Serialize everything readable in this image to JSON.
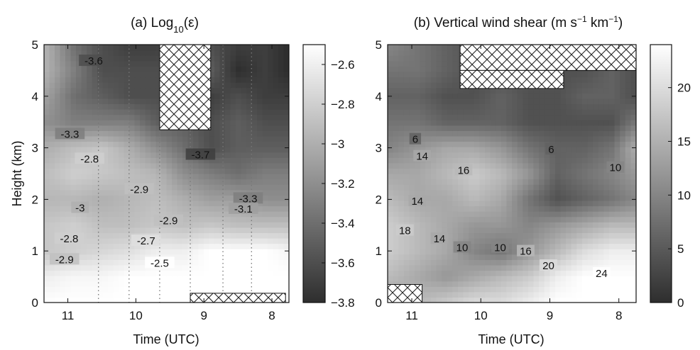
{
  "chart_data": [
    {
      "type": "heatmap",
      "title_prefix": "(a) Log",
      "title_sub": "10",
      "title_suffix": "(ε)",
      "xlabel": "Time (UTC)",
      "ylabel": "Height (km)",
      "x_reversed": true,
      "xlim": [
        11.35,
        7.75
      ],
      "ylim": [
        0,
        5
      ],
      "xticks": [
        {
          "v": 11,
          "t": "11"
        },
        {
          "v": 10,
          "t": "10"
        },
        {
          "v": 9,
          "t": "9"
        },
        {
          "v": 8,
          "t": "8"
        }
      ],
      "yticks": [
        {
          "v": 0,
          "t": "0"
        },
        {
          "v": 1,
          "t": "1"
        },
        {
          "v": 2,
          "t": "2"
        },
        {
          "v": 3,
          "t": "3"
        },
        {
          "v": 4,
          "t": "4"
        },
        {
          "v": 5,
          "t": "5"
        }
      ],
      "colorbar": {
        "range": [
          -3.8,
          -2.5
        ],
        "ticks": [
          {
            "v": -2.6,
            "t": "−2.6"
          },
          {
            "v": -2.8,
            "t": "−2.8"
          },
          {
            "v": -3.0,
            "t": "−3"
          },
          {
            "v": -3.2,
            "t": "−3.2"
          },
          {
            "v": -3.4,
            "t": "−3.4"
          },
          {
            "v": -3.6,
            "t": "−3.6"
          },
          {
            "v": -3.8,
            "t": "−3.8"
          }
        ],
        "dark_color": "#2e2e2e",
        "light_color": "#ffffff"
      },
      "heights": [
        0.0,
        0.5,
        1.0,
        1.5,
        2.0,
        2.5,
        3.0,
        3.5,
        4.0,
        4.5,
        5.0
      ],
      "times": [
        11.3,
        10.9,
        10.5,
        10.1,
        9.7,
        9.3,
        8.9,
        8.5,
        8.1,
        7.8
      ],
      "values": [
        [
          -2.5,
          -2.5,
          -2.5,
          -2.5,
          -2.5,
          -2.5,
          -2.5,
          -2.5,
          -2.5,
          -2.5
        ],
        [
          -2.6,
          -2.55,
          -2.55,
          -2.5,
          -2.5,
          -2.5,
          -2.5,
          -2.5,
          -2.5,
          -2.5
        ],
        [
          -2.85,
          -2.8,
          -2.75,
          -2.7,
          -2.6,
          -2.6,
          -2.5,
          -2.5,
          -2.5,
          -2.55
        ],
        [
          -2.85,
          -2.8,
          -2.9,
          -2.9,
          -2.85,
          -2.9,
          -2.85,
          -2.9,
          -2.9,
          -2.9
        ],
        [
          -2.95,
          -2.95,
          -3.0,
          -2.95,
          -2.9,
          -3.0,
          -3.1,
          -3.1,
          -3.2,
          -3.2
        ],
        [
          -2.9,
          -2.8,
          -2.85,
          -2.9,
          -2.95,
          -3.2,
          -3.3,
          -3.4,
          -3.3,
          -3.3
        ],
        [
          -3.0,
          -2.9,
          -2.85,
          -3.0,
          -3.2,
          -3.4,
          -3.6,
          -3.5,
          -3.5,
          -3.5
        ],
        [
          -3.2,
          -3.3,
          -3.3,
          -3.3,
          -3.5,
          -3.5,
          -3.6,
          -3.5,
          -3.6,
          -3.6
        ],
        [
          -3.1,
          -3.4,
          -3.5,
          -3.6,
          -3.6,
          -3.6,
          -3.7,
          -3.6,
          -3.7,
          -3.7
        ],
        [
          -3.0,
          -3.3,
          -3.6,
          -3.6,
          -3.6,
          -3.6,
          -3.5,
          -3.8,
          -3.7,
          -3.8
        ],
        [
          -3.0,
          -3.4,
          -3.6,
          -3.7,
          -3.7,
          -3.6,
          -3.6,
          -3.7,
          -3.7,
          -3.8
        ]
      ],
      "contour_labels": [
        {
          "x": 10.62,
          "y": 4.67,
          "t": "-3.6"
        },
        {
          "x": 10.97,
          "y": 3.25,
          "t": "-3.3"
        },
        {
          "x": 10.68,
          "y": 2.77,
          "t": "-2.8"
        },
        {
          "x": 9.95,
          "y": 2.18,
          "t": "-2.9"
        },
        {
          "x": 10.82,
          "y": 1.82,
          "t": "-3"
        },
        {
          "x": 9.52,
          "y": 1.57,
          "t": "-2.9"
        },
        {
          "x": 9.85,
          "y": 1.18,
          "t": "-2.7"
        },
        {
          "x": 10.98,
          "y": 1.22,
          "t": "-2.8"
        },
        {
          "x": 11.05,
          "y": 0.82,
          "t": "-2.9"
        },
        {
          "x": 9.65,
          "y": 0.75,
          "t": "-2.5"
        },
        {
          "x": 9.05,
          "y": 2.85,
          "t": "-3.7"
        },
        {
          "x": 8.35,
          "y": 2.0,
          "t": "-3.3"
        },
        {
          "x": 8.42,
          "y": 1.8,
          "t": "-3.1"
        }
      ],
      "hatch": [
        {
          "x0": 9.65,
          "x1": 8.9,
          "y0": 3.35,
          "y1": 5.0
        },
        {
          "x0": 9.2,
          "x1": 7.8,
          "y0": 0.0,
          "y1": 0.18
        }
      ],
      "dotted_x": [
        10.55,
        10.1,
        9.65,
        9.2,
        8.72,
        8.3
      ]
    },
    {
      "type": "heatmap",
      "title_prefix": "(b) Vertical wind shear (m s",
      "title_sup1": "−1",
      "title_mid": " km",
      "title_sup2": "−1",
      "title_suffix": ")",
      "xlabel": "Time (UTC)",
      "ylabel": "",
      "x_reversed": true,
      "xlim": [
        11.35,
        7.75
      ],
      "ylim": [
        0,
        5
      ],
      "xticks": [
        {
          "v": 11,
          "t": "11"
        },
        {
          "v": 10,
          "t": "10"
        },
        {
          "v": 9,
          "t": "9"
        },
        {
          "v": 8,
          "t": "8"
        }
      ],
      "yticks": [
        {
          "v": 0,
          "t": "0"
        },
        {
          "v": 1,
          "t": "1"
        },
        {
          "v": 2,
          "t": "2"
        },
        {
          "v": 3,
          "t": "3"
        },
        {
          "v": 4,
          "t": "4"
        },
        {
          "v": 5,
          "t": "5"
        }
      ],
      "colorbar": {
        "range": [
          0,
          24
        ],
        "ticks": [
          {
            "v": 0,
            "t": "0"
          },
          {
            "v": 5,
            "t": "5"
          },
          {
            "v": 10,
            "t": "10"
          },
          {
            "v": 15,
            "t": "15"
          },
          {
            "v": 20,
            "t": "20"
          }
        ],
        "dark_color": "#2e2e2e",
        "light_color": "#ffffff"
      },
      "heights": [
        0.0,
        0.5,
        1.0,
        1.5,
        2.0,
        2.5,
        3.0,
        3.5,
        4.0,
        4.5,
        5.0
      ],
      "times": [
        11.3,
        10.9,
        10.5,
        10.1,
        9.7,
        9.3,
        8.9,
        8.5,
        8.1,
        7.8
      ],
      "values": [
        [
          14,
          16,
          18,
          20,
          20,
          22,
          24,
          24,
          24,
          24
        ],
        [
          16,
          14,
          12,
          14,
          16,
          18,
          22,
          24,
          24,
          24
        ],
        [
          18,
          16,
          14,
          10,
          8,
          12,
          16,
          20,
          22,
          22
        ],
        [
          18,
          16,
          14,
          12,
          12,
          10,
          12,
          14,
          16,
          16
        ],
        [
          16,
          14,
          14,
          16,
          14,
          8,
          4,
          6,
          8,
          10
        ],
        [
          14,
          14,
          16,
          18,
          16,
          12,
          6,
          8,
          10,
          12
        ],
        [
          10,
          12,
          14,
          14,
          12,
          8,
          6,
          6,
          8,
          14
        ],
        [
          8,
          8,
          6,
          6,
          6,
          4,
          4,
          4,
          4,
          8
        ],
        [
          6,
          6,
          4,
          4,
          6,
          4,
          4,
          6,
          6,
          4
        ],
        [
          8,
          8,
          6,
          4,
          4,
          4,
          4,
          4,
          6,
          4
        ],
        [
          10,
          8,
          6,
          4,
          4,
          4,
          4,
          4,
          4,
          4
        ]
      ],
      "contour_labels": [
        {
          "x": 10.95,
          "y": 3.15,
          "t": "6"
        },
        {
          "x": 10.85,
          "y": 2.82,
          "t": "14"
        },
        {
          "x": 10.25,
          "y": 2.55,
          "t": "16"
        },
        {
          "x": 10.92,
          "y": 1.95,
          "t": "14"
        },
        {
          "x": 11.1,
          "y": 1.38,
          "t": "18"
        },
        {
          "x": 10.6,
          "y": 1.22,
          "t": "14"
        },
        {
          "x": 10.27,
          "y": 1.05,
          "t": "10"
        },
        {
          "x": 9.72,
          "y": 1.05,
          "t": "10"
        },
        {
          "x": 9.35,
          "y": 0.98,
          "t": "16"
        },
        {
          "x": 9.02,
          "y": 0.7,
          "t": "20"
        },
        {
          "x": 8.25,
          "y": 0.55,
          "t": "24"
        },
        {
          "x": 8.98,
          "y": 2.95,
          "t": "6"
        },
        {
          "x": 8.05,
          "y": 2.6,
          "t": "10"
        }
      ],
      "hatch": [
        {
          "x0": 11.35,
          "x1": 10.85,
          "y0": 0.0,
          "y1": 0.35
        },
        {
          "x0": 10.3,
          "x1": 7.75,
          "y0": 4.5,
          "y1": 5.0
        },
        {
          "x0": 10.3,
          "x1": 8.8,
          "y0": 4.15,
          "y1": 4.5
        }
      ],
      "dotted_x": []
    }
  ]
}
